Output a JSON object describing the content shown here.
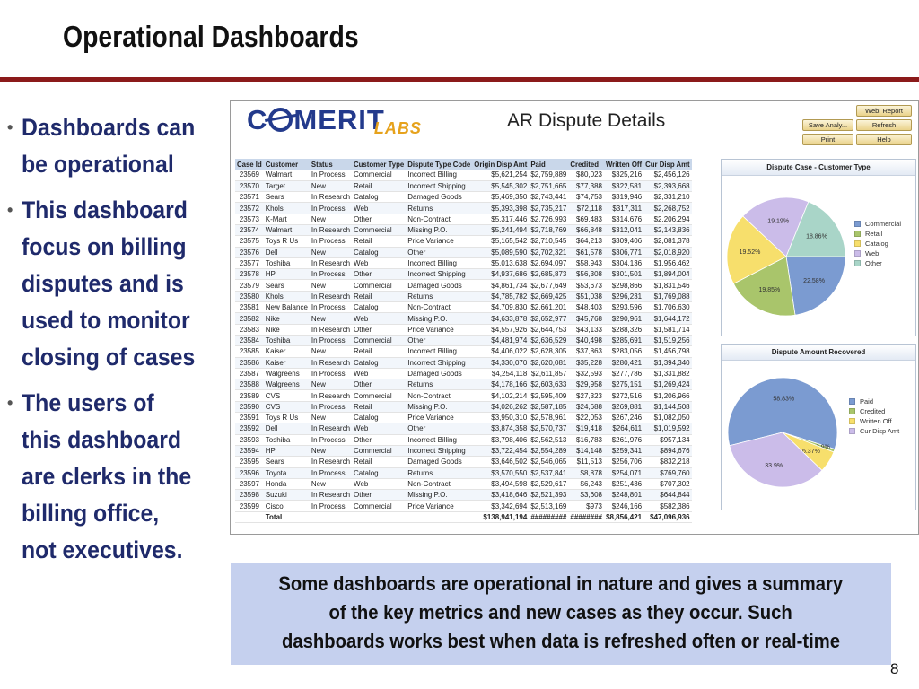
{
  "slide": {
    "title": "Operational Dashboards",
    "page_number": "8",
    "bullets": [
      {
        "lines": [
          "Dashboards can",
          "be operational"
        ]
      },
      {
        "lines": [
          "This dashboard",
          "focus on billing",
          "disputes and is",
          "used to monitor",
          "closing of cases"
        ]
      },
      {
        "lines": [
          "The users of",
          "this dashboard",
          "are clerks in the",
          "billing office,",
          "not executives."
        ]
      }
    ],
    "caption_lines": [
      "Some dashboards are operational in nature and gives a summary",
      "of the key metrics and new cases as they occur. Such",
      "dashboards works best when data is refreshed often or real-time"
    ]
  },
  "dashboard": {
    "logo_main": "C MERIT",
    "logo_sub": "LABS",
    "title": "AR Dispute Details",
    "buttons": {
      "webi_report": "WebI Report",
      "save_analysis": "Save Analy...",
      "refresh": "Refresh",
      "print": "Print",
      "help": "Help"
    },
    "columns": [
      "Case Id",
      "Customer",
      "Status",
      "Customer Type",
      "Dispute Type Code",
      "Origin Disp Amt",
      "Paid",
      "Credited",
      "Written Off",
      "Cur Disp Amt"
    ],
    "rows": [
      [
        "23569",
        "Walmart",
        "In Process",
        "Commercial",
        "Incorrect Billing",
        "$5,621,254",
        "$2,759,889",
        "$80,023",
        "$325,216",
        "$2,456,126"
      ],
      [
        "23570",
        "Target",
        "New",
        "Retail",
        "Incorrect Shipping",
        "$5,545,302",
        "$2,751,665",
        "$77,388",
        "$322,581",
        "$2,393,668"
      ],
      [
        "23571",
        "Sears",
        "In Research",
        "Catalog",
        "Damaged Goods",
        "$5,469,350",
        "$2,743,441",
        "$74,753",
        "$319,946",
        "$2,331,210"
      ],
      [
        "23572",
        "Khols",
        "In Process",
        "Web",
        "Returns",
        "$5,393,398",
        "$2,735,217",
        "$72,118",
        "$317,311",
        "$2,268,752"
      ],
      [
        "23573",
        "K-Mart",
        "New",
        "Other",
        "Non-Contract",
        "$5,317,446",
        "$2,726,993",
        "$69,483",
        "$314,676",
        "$2,206,294"
      ],
      [
        "23574",
        "Walmart",
        "In Research",
        "Commercial",
        "Missing P.O.",
        "$5,241,494",
        "$2,718,769",
        "$66,848",
        "$312,041",
        "$2,143,836"
      ],
      [
        "23575",
        "Toys R Us",
        "In Process",
        "Retail",
        "Price Variance",
        "$5,165,542",
        "$2,710,545",
        "$64,213",
        "$309,406",
        "$2,081,378"
      ],
      [
        "23576",
        "Dell",
        "New",
        "Catalog",
        "Other",
        "$5,089,590",
        "$2,702,321",
        "$61,578",
        "$306,771",
        "$2,018,920"
      ],
      [
        "23577",
        "Toshiba",
        "In Research",
        "Web",
        "Incorrect Billing",
        "$5,013,638",
        "$2,694,097",
        "$58,943",
        "$304,136",
        "$1,956,462"
      ],
      [
        "23578",
        "HP",
        "In Process",
        "Other",
        "Incorrect Shipping",
        "$4,937,686",
        "$2,685,873",
        "$56,308",
        "$301,501",
        "$1,894,004"
      ],
      [
        "23579",
        "Sears",
        "New",
        "Commercial",
        "Damaged Goods",
        "$4,861,734",
        "$2,677,649",
        "$53,673",
        "$298,866",
        "$1,831,546"
      ],
      [
        "23580",
        "Khols",
        "In Research",
        "Retail",
        "Returns",
        "$4,785,782",
        "$2,669,425",
        "$51,038",
        "$296,231",
        "$1,769,088"
      ],
      [
        "23581",
        "New Balance",
        "In Process",
        "Catalog",
        "Non-Contract",
        "$4,709,830",
        "$2,661,201",
        "$48,403",
        "$293,596",
        "$1,706,630"
      ],
      [
        "23582",
        "Nike",
        "New",
        "Web",
        "Missing P.O.",
        "$4,633,878",
        "$2,652,977",
        "$45,768",
        "$290,961",
        "$1,644,172"
      ],
      [
        "23583",
        "Nike",
        "In Research",
        "Other",
        "Price Variance",
        "$4,557,926",
        "$2,644,753",
        "$43,133",
        "$288,326",
        "$1,581,714"
      ],
      [
        "23584",
        "Toshiba",
        "In Process",
        "Commercial",
        "Other",
        "$4,481,974",
        "$2,636,529",
        "$40,498",
        "$285,691",
        "$1,519,256"
      ],
      [
        "23585",
        "Kaiser",
        "New",
        "Retail",
        "Incorrect Billing",
        "$4,406,022",
        "$2,628,305",
        "$37,863",
        "$283,056",
        "$1,456,798"
      ],
      [
        "23586",
        "Kaiser",
        "In Research",
        "Catalog",
        "Incorrect Shipping",
        "$4,330,070",
        "$2,620,081",
        "$35,228",
        "$280,421",
        "$1,394,340"
      ],
      [
        "23587",
        "Walgreens",
        "In Process",
        "Web",
        "Damaged Goods",
        "$4,254,118",
        "$2,611,857",
        "$32,593",
        "$277,786",
        "$1,331,882"
      ],
      [
        "23588",
        "Walgreens",
        "New",
        "Other",
        "Returns",
        "$4,178,166",
        "$2,603,633",
        "$29,958",
        "$275,151",
        "$1,269,424"
      ],
      [
        "23589",
        "CVS",
        "In Research",
        "Commercial",
        "Non-Contract",
        "$4,102,214",
        "$2,595,409",
        "$27,323",
        "$272,516",
        "$1,206,966"
      ],
      [
        "23590",
        "CVS",
        "In Process",
        "Retail",
        "Missing P.O.",
        "$4,026,262",
        "$2,587,185",
        "$24,688",
        "$269,881",
        "$1,144,508"
      ],
      [
        "23591",
        "Toys R Us",
        "New",
        "Catalog",
        "Price Variance",
        "$3,950,310",
        "$2,578,961",
        "$22,053",
        "$267,246",
        "$1,082,050"
      ],
      [
        "23592",
        "Dell",
        "In Research",
        "Web",
        "Other",
        "$3,874,358",
        "$2,570,737",
        "$19,418",
        "$264,611",
        "$1,019,592"
      ],
      [
        "23593",
        "Toshiba",
        "In Process",
        "Other",
        "Incorrect Billing",
        "$3,798,406",
        "$2,562,513",
        "$16,783",
        "$261,976",
        "$957,134"
      ],
      [
        "23594",
        "HP",
        "New",
        "Commercial",
        "Incorrect Shipping",
        "$3,722,454",
        "$2,554,289",
        "$14,148",
        "$259,341",
        "$894,676"
      ],
      [
        "23595",
        "Sears",
        "In Research",
        "Retail",
        "Damaged Goods",
        "$3,646,502",
        "$2,546,065",
        "$11,513",
        "$256,706",
        "$832,218"
      ],
      [
        "23596",
        "Toyota",
        "In Process",
        "Catalog",
        "Returns",
        "$3,570,550",
        "$2,537,841",
        "$8,878",
        "$254,071",
        "$769,760"
      ],
      [
        "23597",
        "Honda",
        "New",
        "Web",
        "Non-Contract",
        "$3,494,598",
        "$2,529,617",
        "$6,243",
        "$251,436",
        "$707,302"
      ],
      [
        "23598",
        "Suzuki",
        "In Research",
        "Other",
        "Missing P.O.",
        "$3,418,646",
        "$2,521,393",
        "$3,608",
        "$248,801",
        "$644,844"
      ],
      [
        "23599",
        "Cisco",
        "In Process",
        "Commercial",
        "Price Variance",
        "$3,342,694",
        "$2,513,169",
        "$973",
        "$246,166",
        "$582,386"
      ]
    ],
    "total_row": [
      "",
      "Total",
      "",
      "",
      "",
      "$138,941,194",
      "#########",
      "########",
      "$8,856,421",
      "$47,096,936"
    ]
  },
  "chart_data": [
    {
      "type": "pie",
      "title": "Dispute Case - Customer Type",
      "categories": [
        "Commercial",
        "Retail",
        "Catalog",
        "Web",
        "Other"
      ],
      "values": [
        22.58,
        19.85,
        19.52,
        19.19,
        18.86
      ],
      "value_labels": [
        "22.58%",
        "19.85%",
        "19.52%",
        "19.19%",
        "18.86%"
      ],
      "colors": [
        "#7b9bd1",
        "#a9c56b",
        "#f7df6c",
        "#cbbce9",
        "#a9d5c8"
      ],
      "legend": "right"
    },
    {
      "type": "pie",
      "title": "Dispute Amount Recovered",
      "categories": [
        "Paid",
        "Credited",
        "Written Off",
        "Cur Disp Amt"
      ],
      "values": [
        58.83,
        0.9,
        6.37,
        33.9
      ],
      "value_labels": [
        "58.83%",
        "0.9%",
        "6.37%",
        "33.9%"
      ],
      "colors": [
        "#7b9bd1",
        "#a9c56b",
        "#f7df6c",
        "#cbbce9"
      ],
      "legend": "right"
    }
  ]
}
